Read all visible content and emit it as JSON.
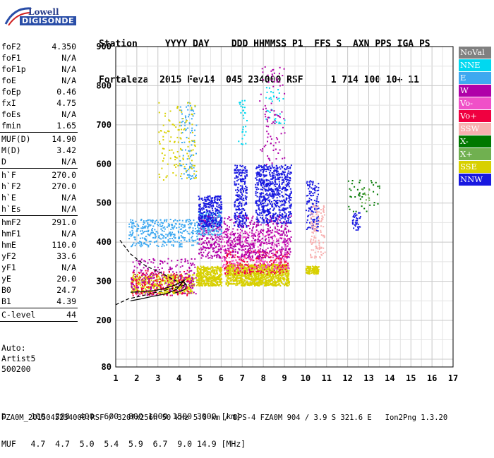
{
  "logo": {
    "brand": "Lowell",
    "product": "DIGISONDE"
  },
  "header": {
    "row1": "Station     YYYY DAY    DDD HHMMSS P1  FFS S  AXN PPS IGA PS",
    "row2": "Fortaleza  2015 Fev14  045 234000 RSF     1 714 100 10+ 11"
  },
  "params": [
    [
      {
        "label": "foF2",
        "value": "4.350"
      },
      {
        "label": "foF1",
        "value": "N/A"
      },
      {
        "label": "foF1p",
        "value": "N/A"
      },
      {
        "label": "foE",
        "value": "N/A"
      },
      {
        "label": "foEp",
        "value": "0.46"
      },
      {
        "label": "fxI",
        "value": "4.75"
      },
      {
        "label": "foEs",
        "value": "N/A"
      },
      {
        "label": "fmin",
        "value": "1.65"
      }
    ],
    [
      {
        "label": "MUF(D)",
        "value": "14.90"
      },
      {
        "label": "M(D)",
        "value": "3.42"
      },
      {
        "label": "D",
        "value": "N/A"
      }
    ],
    [
      {
        "label": "h`F",
        "value": "270.0"
      },
      {
        "label": "h`F2",
        "value": "270.0"
      },
      {
        "label": "h`E",
        "value": "N/A"
      },
      {
        "label": "h`Es",
        "value": "N/A"
      }
    ],
    [
      {
        "label": "hmF2",
        "value": "291.0"
      },
      {
        "label": "hmF1",
        "value": "N/A"
      },
      {
        "label": "hmE",
        "value": "110.0"
      },
      {
        "label": "yF2",
        "value": "33.6"
      },
      {
        "label": "yF1",
        "value": "N/A"
      },
      {
        "label": "yE",
        "value": "20.0"
      },
      {
        "label": "B0",
        "value": "24.7"
      },
      {
        "label": "B1",
        "value": "4.39"
      }
    ],
    [
      {
        "label": "C-level",
        "value": "44"
      }
    ]
  ],
  "auto": {
    "line1": "Auto:",
    "line2": "Artist5",
    "line3": "500200"
  },
  "dtable": {
    "d_row": "D     100  200  400  600  800 1000 1500 3000 [km]",
    "muf_row": "MUF   4.7  4.7  5.0  5.4  5.9  6.7  9.0 14.9 [MHz]"
  },
  "footer": "FZA0M_2015045234000.RSF / 320fx256h 50 kHz 5.0 km / DPS-4 FZA0M 904 / 3.9 S 321.6 E   Ion2Png 1.3.20",
  "legend": [
    {
      "label": "NoVal",
      "color": "#808080"
    },
    {
      "label": "NNE",
      "color": "#00d8f0"
    },
    {
      "label": "E",
      "color": "#3ea8f0"
    },
    {
      "label": "W",
      "color": "#b000a8"
    },
    {
      "label": "Vo-",
      "color": "#f050c8"
    },
    {
      "label": "Vo+",
      "color": "#f00040"
    },
    {
      "label": "SSW",
      "color": "#f8b0b0"
    },
    {
      "label": "X-",
      "color": "#007800"
    },
    {
      "label": "X+",
      "color": "#70b050"
    },
    {
      "label": "SSE",
      "color": "#d8d000"
    },
    {
      "label": "NNW",
      "color": "#1818e0"
    }
  ],
  "chart_data": {
    "type": "scatter",
    "xlim": [
      1,
      17
    ],
    "ylim": [
      80,
      900
    ],
    "x_ticks": [
      1,
      2,
      3,
      4,
      5,
      6,
      7,
      8,
      9,
      10,
      11,
      12,
      13,
      14,
      15,
      16,
      17
    ],
    "y_ticks": [
      80,
      200,
      300,
      400,
      500,
      600,
      700,
      800,
      900
    ],
    "grid": true,
    "legend_position": "right",
    "clusters": [
      {
        "series": "SSE",
        "x": [
          1.7,
          4.7
        ],
        "y": [
          270,
          320
        ],
        "n": 160
      },
      {
        "series": "SSE",
        "x": [
          4.8,
          6.0
        ],
        "y": [
          290,
          340
        ],
        "n": 140
      },
      {
        "series": "SSE",
        "x": [
          6.2,
          7.6
        ],
        "y": [
          290,
          345
        ],
        "n": 160
      },
      {
        "series": "SSE",
        "x": [
          7.6,
          9.2
        ],
        "y": [
          290,
          345
        ],
        "n": 200
      },
      {
        "series": "SSE",
        "x": [
          10.0,
          10.6
        ],
        "y": [
          320,
          340
        ],
        "n": 40
      },
      {
        "series": "Vo+",
        "x": [
          1.7,
          4.5
        ],
        "y": [
          265,
          330
        ],
        "n": 60
      },
      {
        "series": "Vo+",
        "x": [
          6.1,
          9.2
        ],
        "y": [
          320,
          380
        ],
        "n": 80
      },
      {
        "series": "Vo-",
        "x": [
          6.0,
          9.2
        ],
        "y": [
          330,
          430
        ],
        "n": 90
      },
      {
        "series": "W",
        "x": [
          1.7,
          4.8
        ],
        "y": [
          265,
          360
        ],
        "n": 70
      },
      {
        "series": "W",
        "x": [
          4.9,
          6.0
        ],
        "y": [
          360,
          470
        ],
        "n": 80
      },
      {
        "series": "W",
        "x": [
          6.1,
          9.3
        ],
        "y": [
          360,
          470
        ],
        "n": 160
      },
      {
        "series": "E",
        "x": [
          1.6,
          4.9
        ],
        "y": [
          390,
          460
        ],
        "n": 120
      },
      {
        "series": "E",
        "x": [
          4.9,
          6.0
        ],
        "y": [
          420,
          480
        ],
        "n": 60
      },
      {
        "series": "NNW",
        "x": [
          4.9,
          6.0
        ],
        "y": [
          440,
          520
        ],
        "n": 90
      },
      {
        "series": "NNW",
        "x": [
          6.6,
          7.2
        ],
        "y": [
          440,
          600
        ],
        "n": 80
      },
      {
        "series": "NNW",
        "x": [
          7.6,
          9.3
        ],
        "y": [
          450,
          600
        ],
        "n": 220
      },
      {
        "series": "NNW",
        "x": [
          10.0,
          10.6
        ],
        "y": [
          430,
          560
        ],
        "n": 40
      },
      {
        "series": "NNW",
        "x": [
          12.2,
          12.6
        ],
        "y": [
          430,
          480
        ],
        "n": 12
      },
      {
        "series": "SSW",
        "x": [
          10.2,
          10.9
        ],
        "y": [
          360,
          500
        ],
        "n": 40
      },
      {
        "series": "NNE",
        "x": [
          6.8,
          7.2
        ],
        "y": [
          650,
          780
        ],
        "n": 10
      },
      {
        "series": "NNE",
        "x": [
          8.1,
          9.0
        ],
        "y": [
          700,
          800
        ],
        "n": 12
      },
      {
        "series": "E",
        "x": [
          4.0,
          4.8
        ],
        "y": [
          560,
          760
        ],
        "n": 30
      },
      {
        "series": "W",
        "x": [
          7.8,
          9.0
        ],
        "y": [
          600,
          850
        ],
        "n": 30
      },
      {
        "series": "SSE",
        "x": [
          3.0,
          4.8
        ],
        "y": [
          560,
          760
        ],
        "n": 40
      },
      {
        "series": "X-",
        "x": [
          12.0,
          13.5
        ],
        "y": [
          480,
          560
        ],
        "n": 14
      },
      {
        "series": "X+",
        "x": [
          12.6,
          13.0
        ],
        "y": [
          500,
          540
        ],
        "n": 4
      }
    ],
    "curves": [
      {
        "name": "profile",
        "style": "solid",
        "x": [
          1.7,
          2.2,
          2.8,
          3.4,
          3.9,
          4.2,
          4.35,
          4.3,
          4.1,
          3.8
        ],
        "y": [
          250,
          255,
          262,
          268,
          280,
          300,
          291,
          280,
          275,
          270
        ]
      },
      {
        "name": "trace",
        "style": "solid",
        "x": [
          1.7,
          2.2,
          2.8,
          3.3,
          3.8,
          4.1,
          4.3
        ],
        "y": [
          272,
          273,
          276,
          281,
          290,
          298,
          304
        ]
      },
      {
        "name": "upper-extrap",
        "style": "dashed",
        "x": [
          1.2,
          1.7,
          2.4,
          3.2,
          3.9,
          4.35
        ],
        "y": [
          405,
          370,
          340,
          320,
          300,
          291
        ]
      },
      {
        "name": "lower-extrap",
        "style": "dashed",
        "x": [
          1.0,
          1.6,
          2.4,
          3.2,
          3.9,
          4.35
        ],
        "y": [
          240,
          255,
          265,
          275,
          285,
          291
        ]
      }
    ]
  }
}
